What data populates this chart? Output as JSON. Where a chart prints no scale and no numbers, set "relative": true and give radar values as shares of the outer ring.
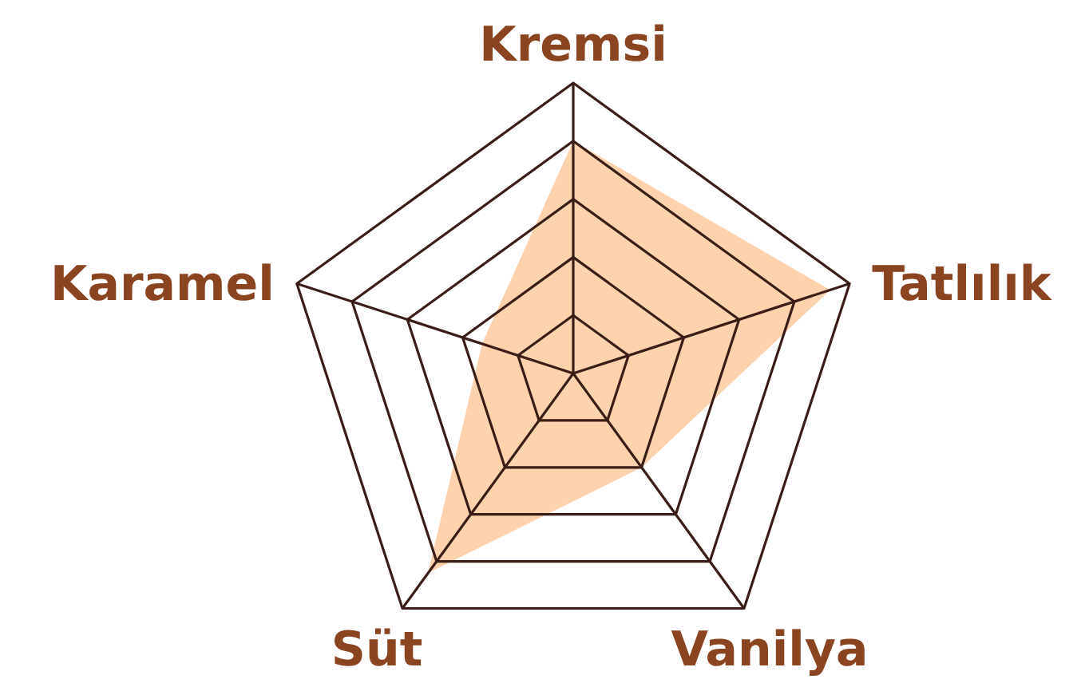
{
  "chart_data": {
    "type": "radar",
    "relative": true,
    "categories": [
      "Kremsi",
      "Tatlılık",
      "Vanilya",
      "Süt",
      "Karamel"
    ],
    "series": [
      {
        "color": "#fdd2ad",
        "values": [
          0.8,
          0.93,
          0.4,
          0.85,
          0.33
        ]
      }
    ],
    "grid": true
  }
}
